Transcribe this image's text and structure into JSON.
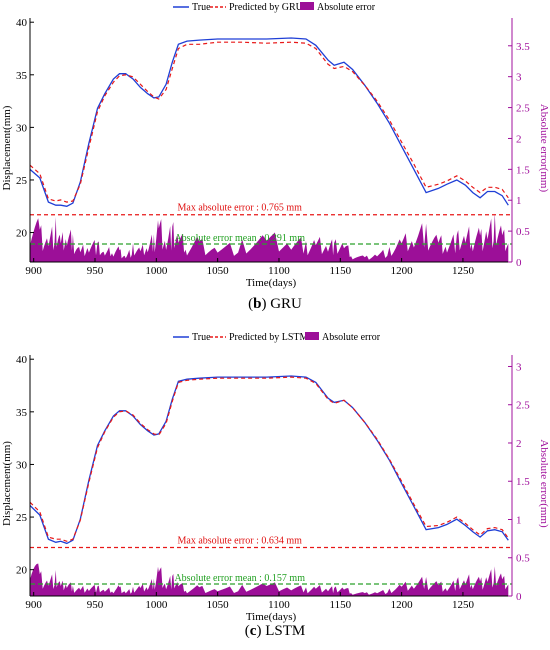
{
  "colors": {
    "true": "#1f3fd6",
    "pred": "#e81818",
    "err": "#9c0f98",
    "mean": "#2aa02a",
    "rightAxis": "#a0109c"
  },
  "chart_data": [
    {
      "type": "line",
      "caption_bold": "b",
      "caption_rest": " GRU",
      "legend": [
        "True",
        "Predicted by GRU",
        "Absolute error"
      ],
      "xlabel": "Time(days)",
      "ylabel": "Displacement(mm)",
      "ylabel_right": "Absolute error(mm)",
      "xlim": [
        897,
        1290
      ],
      "ylim": [
        17.2,
        40.4
      ],
      "ylim_right": [
        0,
        3.95
      ],
      "xticks": [
        "900",
        "950",
        "1000",
        "1050",
        "1100",
        "1150",
        "1200",
        "1250"
      ],
      "xtick_values": [
        900,
        950,
        1000,
        1050,
        1100,
        1150,
        1200,
        1250
      ],
      "yticks": [
        "20",
        "25",
        "30",
        "35",
        "40"
      ],
      "ytick_values": [
        20,
        25,
        30,
        35,
        40
      ],
      "yticks_right": [
        "0",
        "0.5",
        "1",
        "1.5",
        "2",
        "2.5",
        "3",
        "3.5"
      ],
      "ytick_right_values": [
        0,
        0.5,
        1,
        1.5,
        2,
        2.5,
        3,
        3.5
      ],
      "max_error_label": "Max absolute error : 0.765 mm",
      "max_error": 0.765,
      "mean_error_label": "Absolute error mean : 0.291 mm",
      "mean_error": 0.291,
      "x": [
        897,
        905,
        912,
        918,
        922,
        927,
        932,
        938,
        945,
        952,
        958,
        965,
        970,
        975,
        981,
        987,
        993,
        998,
        1002,
        1008,
        1013,
        1018,
        1025,
        1035,
        1050,
        1070,
        1090,
        1110,
        1122,
        1130,
        1140,
        1145,
        1153,
        1160,
        1170,
        1180,
        1190,
        1200,
        1210,
        1220,
        1230,
        1237,
        1245,
        1252,
        1258,
        1264,
        1270,
        1276,
        1282,
        1287
      ],
      "true": [
        26.0,
        25.2,
        22.9,
        22.6,
        22.6,
        22.5,
        22.8,
        24.8,
        28.5,
        31.8,
        33.2,
        34.6,
        35.1,
        35.1,
        34.6,
        33.8,
        33.2,
        32.8,
        32.9,
        34.1,
        36.2,
        37.9,
        38.2,
        38.3,
        38.4,
        38.4,
        38.4,
        38.5,
        38.4,
        37.8,
        36.4,
        35.9,
        36.2,
        35.5,
        34.0,
        32.3,
        30.4,
        28.2,
        26.0,
        23.8,
        24.2,
        24.6,
        25.0,
        24.5,
        23.8,
        23.3,
        23.9,
        23.9,
        23.5,
        22.6
      ],
      "predicted": [
        26.4,
        25.6,
        23.2,
        23.0,
        23.1,
        22.9,
        23.0,
        24.6,
        28.1,
        31.5,
        33.0,
        34.3,
        34.9,
        35.0,
        34.8,
        34.1,
        33.4,
        32.9,
        32.7,
        33.6,
        35.6,
        37.5,
        37.9,
        37.9,
        38.1,
        38.1,
        38.0,
        38.1,
        38.0,
        37.5,
        36.0,
        35.6,
        35.8,
        35.3,
        34.0,
        32.5,
        30.7,
        28.6,
        26.5,
        24.3,
        24.6,
        24.9,
        25.4,
        24.9,
        24.3,
        23.8,
        24.3,
        24.3,
        24.1,
        23.3
      ],
      "error": [
        0.75,
        0.55,
        0.42,
        0.6,
        0.35,
        0.5,
        0.4,
        0.2,
        0.35,
        0.3,
        0.15,
        0.25,
        0.2,
        0.1,
        0.25,
        0.2,
        0.3,
        0.4,
        0.7,
        0.45,
        0.55,
        0.45,
        0.3,
        0.35,
        0.25,
        0.3,
        0.4,
        0.38,
        0.3,
        0.35,
        0.38,
        0.3,
        0.32,
        0.12,
        0.08,
        0.15,
        0.2,
        0.35,
        0.45,
        0.55,
        0.4,
        0.35,
        0.42,
        0.45,
        0.5,
        0.45,
        0.6,
        0.65,
        0.5,
        0.3
      ]
    },
    {
      "type": "line",
      "caption_bold": "c",
      "caption_rest": " LSTM",
      "legend": [
        "True",
        "Predicted by LSTM",
        "Absolute error"
      ],
      "xlabel": "Time(days)",
      "ylabel": "Displacement(mm)",
      "ylabel_right": "Absolute error(mm)",
      "xlim": [
        897,
        1290
      ],
      "ylim": [
        17.5,
        40.4
      ],
      "ylim_right": [
        0,
        3.15
      ],
      "xticks": [
        "900",
        "950",
        "1000",
        "1050",
        "1100",
        "1150",
        "1200",
        "1250"
      ],
      "xtick_values": [
        900,
        950,
        1000,
        1050,
        1100,
        1150,
        1200,
        1250
      ],
      "yticks": [
        "20",
        "25",
        "30",
        "35",
        "40"
      ],
      "ytick_values": [
        20,
        25,
        30,
        35,
        40
      ],
      "yticks_right": [
        "0",
        "0.5",
        "1",
        "1.5",
        "2",
        "2.5",
        "3"
      ],
      "ytick_right_values": [
        0,
        0.5,
        1,
        1.5,
        2,
        2.5,
        3
      ],
      "max_error_label": "Max absolute error : 0.634 mm",
      "max_error": 0.634,
      "mean_error_label": "Absolute error mean : 0.157 mm",
      "mean_error": 0.157,
      "x": [
        897,
        905,
        912,
        918,
        922,
        927,
        932,
        938,
        945,
        952,
        958,
        965,
        970,
        975,
        981,
        987,
        993,
        998,
        1002,
        1008,
        1013,
        1018,
        1025,
        1035,
        1050,
        1070,
        1090,
        1110,
        1122,
        1130,
        1140,
        1145,
        1153,
        1160,
        1170,
        1180,
        1190,
        1200,
        1210,
        1220,
        1230,
        1237,
        1245,
        1252,
        1258,
        1264,
        1270,
        1276,
        1282,
        1287
      ],
      "true": [
        26.1,
        25.2,
        22.9,
        22.6,
        22.7,
        22.5,
        22.8,
        24.8,
        28.5,
        31.8,
        33.2,
        34.6,
        35.1,
        35.1,
        34.6,
        33.8,
        33.2,
        32.8,
        32.9,
        34.1,
        36.2,
        37.9,
        38.1,
        38.2,
        38.3,
        38.3,
        38.3,
        38.4,
        38.3,
        37.8,
        36.3,
        35.9,
        36.1,
        35.4,
        34.0,
        32.3,
        30.4,
        28.2,
        26.0,
        23.8,
        24.0,
        24.3,
        24.8,
        24.2,
        23.6,
        23.1,
        23.7,
        23.8,
        23.6,
        22.8
      ],
      "predicted": [
        26.4,
        25.5,
        23.1,
        22.9,
        22.9,
        22.7,
        22.9,
        24.7,
        28.3,
        31.6,
        33.1,
        34.5,
        35.0,
        35.1,
        34.7,
        33.9,
        33.3,
        32.9,
        32.8,
        33.9,
        36.0,
        37.8,
        38.0,
        38.1,
        38.2,
        38.2,
        38.2,
        38.3,
        38.2,
        37.7,
        36.2,
        35.8,
        36.1,
        35.4,
        34.0,
        32.4,
        30.5,
        28.4,
        26.2,
        24.1,
        24.2,
        24.5,
        25.0,
        24.4,
        23.8,
        23.3,
        23.9,
        24.0,
        23.8,
        23.0
      ],
      "error": [
        0.6,
        0.3,
        0.22,
        0.28,
        0.15,
        0.2,
        0.12,
        0.1,
        0.15,
        0.12,
        0.08,
        0.1,
        0.12,
        0.06,
        0.1,
        0.12,
        0.15,
        0.2,
        0.4,
        0.2,
        0.25,
        0.18,
        0.1,
        0.12,
        0.1,
        0.12,
        0.15,
        0.14,
        0.1,
        0.12,
        0.14,
        0.1,
        0.12,
        0.05,
        0.04,
        0.06,
        0.08,
        0.14,
        0.18,
        0.22,
        0.18,
        0.14,
        0.2,
        0.22,
        0.25,
        0.2,
        0.3,
        0.32,
        0.25,
        0.15
      ]
    }
  ]
}
